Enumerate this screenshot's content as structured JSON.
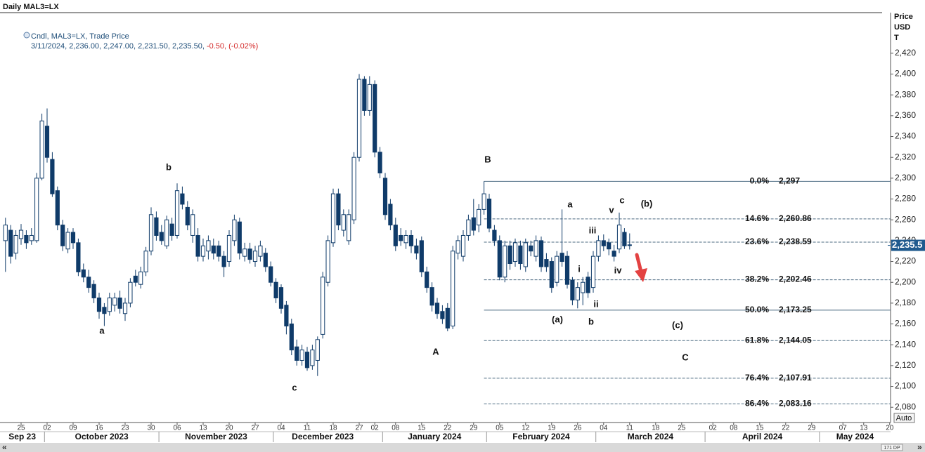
{
  "header": {
    "title": "Daily MAL3=LX"
  },
  "chart_data": {
    "type": "candlestick",
    "legend": {
      "series": "Cndl, MAL3=LX, Trade Price",
      "values": "3/11/2024, 2,236.00, 2,247.00, 2,231.50, 2,235.50,",
      "change": "-0.50, (-0.02%)"
    },
    "y_label": [
      "Price",
      "USD",
      "T"
    ],
    "x": [
      "2023-09-20",
      "2023-09-21",
      "2023-09-22",
      "2023-09-25",
      "2023-09-26",
      "2023-09-27",
      "2023-09-28",
      "2023-09-29",
      "2023-10-02",
      "2023-10-03",
      "2023-10-04",
      "2023-10-05",
      "2023-10-06",
      "2023-10-09",
      "2023-10-10",
      "2023-10-11",
      "2023-10-12",
      "2023-10-13",
      "2023-10-16",
      "2023-10-17",
      "2023-10-18",
      "2023-10-19",
      "2023-10-20",
      "2023-10-23",
      "2023-10-24",
      "2023-10-25",
      "2023-10-26",
      "2023-10-27",
      "2023-10-30",
      "2023-10-31",
      "2023-11-01",
      "2023-11-02",
      "2023-11-03",
      "2023-11-06",
      "2023-11-07",
      "2023-11-08",
      "2023-11-09",
      "2023-11-10",
      "2023-11-13",
      "2023-11-14",
      "2023-11-15",
      "2023-11-16",
      "2023-11-17",
      "2023-11-20",
      "2023-11-21",
      "2023-11-22",
      "2023-11-23",
      "2023-11-24",
      "2023-11-27",
      "2023-11-28",
      "2023-11-29",
      "2023-11-30",
      "2023-12-01",
      "2023-12-04",
      "2023-12-05",
      "2023-12-06",
      "2023-12-07",
      "2023-12-08",
      "2023-12-11",
      "2023-12-12",
      "2023-12-13",
      "2023-12-14",
      "2023-12-15",
      "2023-12-18",
      "2023-12-19",
      "2023-12-20",
      "2023-12-21",
      "2023-12-22",
      "2023-12-27",
      "2023-12-28",
      "2023-12-29",
      "2024-01-02",
      "2024-01-03",
      "2024-01-04",
      "2024-01-05",
      "2024-01-08",
      "2024-01-09",
      "2024-01-10",
      "2024-01-11",
      "2024-01-12",
      "2024-01-15",
      "2024-01-16",
      "2024-01-17",
      "2024-01-18",
      "2024-01-19",
      "2024-01-22",
      "2024-01-23",
      "2024-01-24",
      "2024-01-25",
      "2024-01-26",
      "2024-01-29",
      "2024-01-30",
      "2024-01-31",
      "2024-02-01",
      "2024-02-02",
      "2024-02-05",
      "2024-02-06",
      "2024-02-07",
      "2024-02-08",
      "2024-02-09",
      "2024-02-12",
      "2024-02-13",
      "2024-02-14",
      "2024-02-15",
      "2024-02-16",
      "2024-02-19",
      "2024-02-20",
      "2024-02-21",
      "2024-02-22",
      "2024-02-23",
      "2024-02-26",
      "2024-02-27",
      "2024-02-28",
      "2024-02-29",
      "2024-03-01",
      "2024-03-04",
      "2024-03-05",
      "2024-03-06",
      "2024-03-07",
      "2024-03-08",
      "2024-03-11"
    ],
    "open": [
      2240,
      2250,
      2228,
      2242,
      2245,
      2240,
      2240,
      2300,
      2350,
      2318,
      2288,
      2255,
      2232,
      2248,
      2238,
      2212,
      2205,
      2198,
      2185,
      2176,
      2172,
      2178,
      2185,
      2170,
      2180,
      2206,
      2198,
      2210,
      2230,
      2262,
      2248,
      2235,
      2256,
      2245,
      2285,
      2272,
      2245,
      2245,
      2225,
      2230,
      2235,
      2235,
      2225,
      2220,
      2240,
      2258,
      2225,
      2232,
      2220,
      2225,
      2228,
      2215,
      2200,
      2195,
      2178,
      2160,
      2138,
      2125,
      2133,
      2120,
      2125,
      2150,
      2200,
      2238,
      2285,
      2250,
      2240,
      2260,
      2320,
      2395,
      2365,
      2390,
      2325,
      2300,
      2275,
      2255,
      2245,
      2238,
      2245,
      2235,
      2240,
      2210,
      2195,
      2180,
      2172,
      2175,
      2158,
      2228,
      2225,
      2245,
      2262,
      2255,
      2270,
      2280,
      2250,
      2240,
      2205,
      2235,
      2220,
      2235,
      2215,
      2235,
      2225,
      2240,
      2222,
      2220,
      2200,
      2228,
      2225,
      2202,
      2183,
      2190,
      2205,
      2195,
      2225,
      2240,
      2238,
      2230,
      2232,
      2248,
      2236
    ],
    "high": [
      2262,
      2255,
      2250,
      2256,
      2250,
      2252,
      2305,
      2362,
      2367,
      2325,
      2292,
      2260,
      2252,
      2252,
      2242,
      2218,
      2212,
      2202,
      2190,
      2180,
      2190,
      2190,
      2192,
      2185,
      2204,
      2212,
      2215,
      2234,
      2272,
      2268,
      2255,
      2264,
      2262,
      2295,
      2292,
      2278,
      2270,
      2252,
      2242,
      2245,
      2242,
      2240,
      2230,
      2250,
      2265,
      2262,
      2238,
      2238,
      2235,
      2240,
      2233,
      2220,
      2204,
      2198,
      2182,
      2165,
      2145,
      2140,
      2138,
      2140,
      2148,
      2210,
      2245,
      2290,
      2290,
      2270,
      2270,
      2325,
      2400,
      2398,
      2398,
      2394,
      2330,
      2305,
      2280,
      2262,
      2252,
      2250,
      2250,
      2242,
      2244,
      2215,
      2200,
      2185,
      2178,
      2180,
      2235,
      2245,
      2250,
      2265,
      2280,
      2275,
      2297,
      2285,
      2255,
      2245,
      2240,
      2240,
      2242,
      2240,
      2242,
      2240,
      2245,
      2244,
      2228,
      2224,
      2230,
      2270,
      2230,
      2205,
      2200,
      2205,
      2210,
      2230,
      2245,
      2246,
      2242,
      2236,
      2267,
      2252,
      2247
    ],
    "low": [
      2210,
      2218,
      2222,
      2236,
      2232,
      2236,
      2238,
      2298,
      2315,
      2282,
      2250,
      2230,
      2228,
      2232,
      2206,
      2200,
      2190,
      2180,
      2165,
      2158,
      2168,
      2172,
      2170,
      2163,
      2176,
      2196,
      2194,
      2206,
      2226,
      2240,
      2236,
      2232,
      2240,
      2242,
      2270,
      2250,
      2238,
      2220,
      2220,
      2222,
      2222,
      2220,
      2205,
      2215,
      2235,
      2222,
      2220,
      2218,
      2215,
      2220,
      2210,
      2196,
      2180,
      2170,
      2150,
      2130,
      2120,
      2120,
      2115,
      2116,
      2110,
      2146,
      2196,
      2234,
      2250,
      2244,
      2236,
      2256,
      2316,
      2360,
      2360,
      2320,
      2300,
      2260,
      2250,
      2230,
      2235,
      2232,
      2228,
      2222,
      2205,
      2190,
      2172,
      2165,
      2160,
      2153,
      2155,
      2222,
      2220,
      2240,
      2245,
      2248,
      2265,
      2248,
      2235,
      2202,
      2200,
      2212,
      2215,
      2212,
      2210,
      2225,
      2220,
      2210,
      2210,
      2190,
      2196,
      2215,
      2194,
      2178,
      2175,
      2178,
      2185,
      2190,
      2220,
      2230,
      2226,
      2220,
      2228,
      2232,
      2231.5
    ],
    "close": [
      2255,
      2225,
      2245,
      2250,
      2238,
      2245,
      2300,
      2355,
      2320,
      2285,
      2255,
      2235,
      2248,
      2238,
      2210,
      2205,
      2195,
      2185,
      2172,
      2170,
      2185,
      2185,
      2175,
      2180,
      2200,
      2200,
      2210,
      2230,
      2265,
      2245,
      2240,
      2260,
      2245,
      2288,
      2275,
      2255,
      2265,
      2225,
      2235,
      2240,
      2228,
      2225,
      2215,
      2245,
      2260,
      2228,
      2232,
      2222,
      2230,
      2235,
      2215,
      2200,
      2185,
      2175,
      2158,
      2135,
      2125,
      2135,
      2118,
      2135,
      2145,
      2205,
      2240,
      2285,
      2255,
      2265,
      2265,
      2320,
      2395,
      2365,
      2390,
      2325,
      2305,
      2265,
      2255,
      2235,
      2240,
      2245,
      2235,
      2228,
      2210,
      2195,
      2178,
      2170,
      2165,
      2156,
      2230,
      2240,
      2245,
      2260,
      2250,
      2270,
      2285,
      2252,
      2240,
      2205,
      2235,
      2218,
      2238,
      2218,
      2238,
      2230,
      2240,
      2215,
      2215,
      2195,
      2225,
      2220,
      2198,
      2183,
      2195,
      2200,
      2190,
      2225,
      2240,
      2235,
      2232,
      2225,
      2255,
      2235,
      2235.5
    ],
    "up_color": "#ffffff",
    "down_color": "#0f3b69",
    "ylim": [
      2066,
      2459
    ],
    "yticks": [
      {
        "value": 2080,
        "label": "2,080"
      },
      {
        "value": 2100,
        "label": "2,100"
      },
      {
        "value": 2120,
        "label": "2,120"
      },
      {
        "value": 2140,
        "label": "2,140"
      },
      {
        "value": 2160,
        "label": "2,160"
      },
      {
        "value": 2180,
        "label": "2,180"
      },
      {
        "value": 2200,
        "label": "2,200"
      },
      {
        "value": 2220,
        "label": "2,220"
      },
      {
        "value": 2240,
        "label": "2,240"
      },
      {
        "value": 2260,
        "label": "2,260"
      },
      {
        "value": 2280,
        "label": "2,280"
      },
      {
        "value": 2300,
        "label": "2,300"
      },
      {
        "value": 2320,
        "label": "2,320"
      },
      {
        "value": 2340,
        "label": "2,340"
      },
      {
        "value": 2360,
        "label": "2,360"
      },
      {
        "value": 2380,
        "label": "2,380"
      },
      {
        "value": 2400,
        "label": "2,400"
      },
      {
        "value": 2420,
        "label": "2,420"
      }
    ],
    "xticks": [
      {
        "value": "2023-09-25",
        "label": "25"
      },
      {
        "value": "2023-10-02",
        "label": "02"
      },
      {
        "value": "2023-10-09",
        "label": "09"
      },
      {
        "value": "2023-10-16",
        "label": "16"
      },
      {
        "value": "2023-10-23",
        "label": "23"
      },
      {
        "value": "2023-10-30",
        "label": "30"
      },
      {
        "value": "2023-11-06",
        "label": "06"
      },
      {
        "value": "2023-11-13",
        "label": "13"
      },
      {
        "value": "2023-11-20",
        "label": "20"
      },
      {
        "value": "2023-11-27",
        "label": "27"
      },
      {
        "value": "2023-12-04",
        "label": "04"
      },
      {
        "value": "2023-12-11",
        "label": "11"
      },
      {
        "value": "2023-12-18",
        "label": "18"
      },
      {
        "value": "2023-12-27",
        "label": "27"
      },
      {
        "value": "2024-01-02",
        "label": "02"
      },
      {
        "value": "2024-01-08",
        "label": "08"
      },
      {
        "value": "2024-01-15",
        "label": "15"
      },
      {
        "value": "2024-01-22",
        "label": "22"
      },
      {
        "value": "2024-01-29",
        "label": "29"
      },
      {
        "value": "2024-02-05",
        "label": "05"
      },
      {
        "value": "2024-02-12",
        "label": "12"
      },
      {
        "value": "2024-02-19",
        "label": "19"
      },
      {
        "value": "2024-02-26",
        "label": "26"
      },
      {
        "value": "2024-03-04",
        "label": "04"
      },
      {
        "value": "2024-03-11",
        "label": "11"
      },
      {
        "value": "2024-03-18",
        "label": "18"
      },
      {
        "value": "2024-03-25",
        "label": "25"
      },
      {
        "value": "2024-04-02",
        "label": "02"
      },
      {
        "value": "2024-04-08",
        "label": "08"
      },
      {
        "value": "2024-04-15",
        "label": "15"
      },
      {
        "value": "2024-04-22",
        "label": "22"
      },
      {
        "value": "2024-04-29",
        "label": "29"
      },
      {
        "value": "2024-05-07",
        "label": "07"
      },
      {
        "value": "2024-05-13",
        "label": "13"
      },
      {
        "value": "2024-05-20",
        "label": "20"
      }
    ],
    "month_labels": [
      {
        "value": "2023-09",
        "label": "Sep 23"
      },
      {
        "value": "2023-10",
        "label": "October 2023"
      },
      {
        "value": "2023-11",
        "label": "November 2023"
      },
      {
        "value": "2023-12",
        "label": "December 2023"
      },
      {
        "value": "2024-01",
        "label": "January 2024"
      },
      {
        "value": "2024-02",
        "label": "February 2024"
      },
      {
        "value": "2024-03",
        "label": "March 2024"
      },
      {
        "value": "2024-04",
        "label": "April 2024"
      },
      {
        "value": "2024-05",
        "label": "May 2024"
      }
    ],
    "last_price": {
      "value": 2235.5,
      "label": "2,235.5"
    },
    "fib_levels": [
      {
        "level": "0.0%",
        "value": 2297,
        "label": "2,297",
        "line": "solid"
      },
      {
        "level": "14.6%",
        "value": 2260.86,
        "label": "2,260.86",
        "line": "dashed"
      },
      {
        "level": "23.6%",
        "value": 2238.59,
        "label": "2,238.59",
        "line": "dashed"
      },
      {
        "level": "38.2%",
        "value": 2202.46,
        "label": "2,202.46",
        "line": "dashed"
      },
      {
        "level": "50.0%",
        "value": 2173.25,
        "label": "2,173.25",
        "line": "solid"
      },
      {
        "level": "61.8%",
        "value": 2144.05,
        "label": "2,144.05",
        "line": "dashed"
      },
      {
        "level": "76.4%",
        "value": 2107.91,
        "label": "2,107.91",
        "line": "dashed"
      },
      {
        "level": "86.4%",
        "value": 2083.16,
        "label": "2,083.16",
        "line": "dashed"
      }
    ],
    "annotations": [
      "b",
      "a",
      "c",
      "B",
      "A",
      "a",
      "(a)",
      "b",
      "i",
      "ii",
      "iii",
      "iv",
      "v",
      "c",
      "(b)",
      "(c)",
      "C"
    ]
  },
  "ui": {
    "auto": "Auto",
    "scroll_left": "«",
    "scroll_right": "»",
    "zoom": "171 DP"
  }
}
